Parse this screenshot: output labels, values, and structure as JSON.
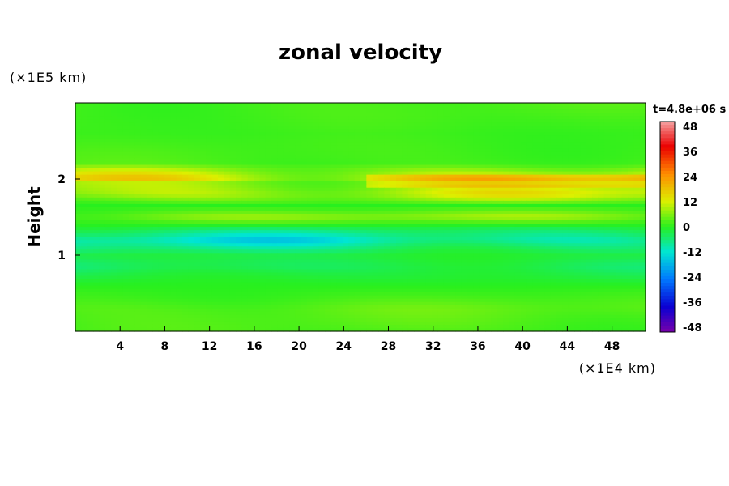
{
  "chart_data": {
    "type": "heatmap",
    "title": "zonal velocity",
    "xlabel": "",
    "ylabel": "Height",
    "x_unit": "(×1E4 km)",
    "y_unit": "(×1E5 km)",
    "xlim": [
      0,
      51
    ],
    "ylim": [
      0,
      3
    ],
    "x_ticks": [
      4,
      8,
      12,
      16,
      20,
      24,
      28,
      32,
      36,
      40,
      44,
      48
    ],
    "y_ticks": [
      1,
      2
    ],
    "time_label": "t=4.8e+06 s",
    "colorbar": {
      "min": -48,
      "max": 48,
      "ticks": [
        48,
        36,
        24,
        12,
        0,
        -12,
        -24,
        -36,
        -48
      ]
    },
    "approx_profile": {
      "heights": [
        0.0,
        0.3,
        0.6,
        0.85,
        1.0,
        1.2,
        1.35,
        1.5,
        1.65,
        1.8,
        1.95,
        2.0,
        2.2,
        2.6,
        3.0
      ],
      "velocity": [
        2,
        3,
        0,
        -4,
        -2,
        -10,
        -3,
        6,
        0,
        10,
        8,
        14,
        2,
        1,
        2
      ]
    }
  },
  "colors": {
    "background": "#ffffff",
    "field_base": "#2bf21a"
  }
}
